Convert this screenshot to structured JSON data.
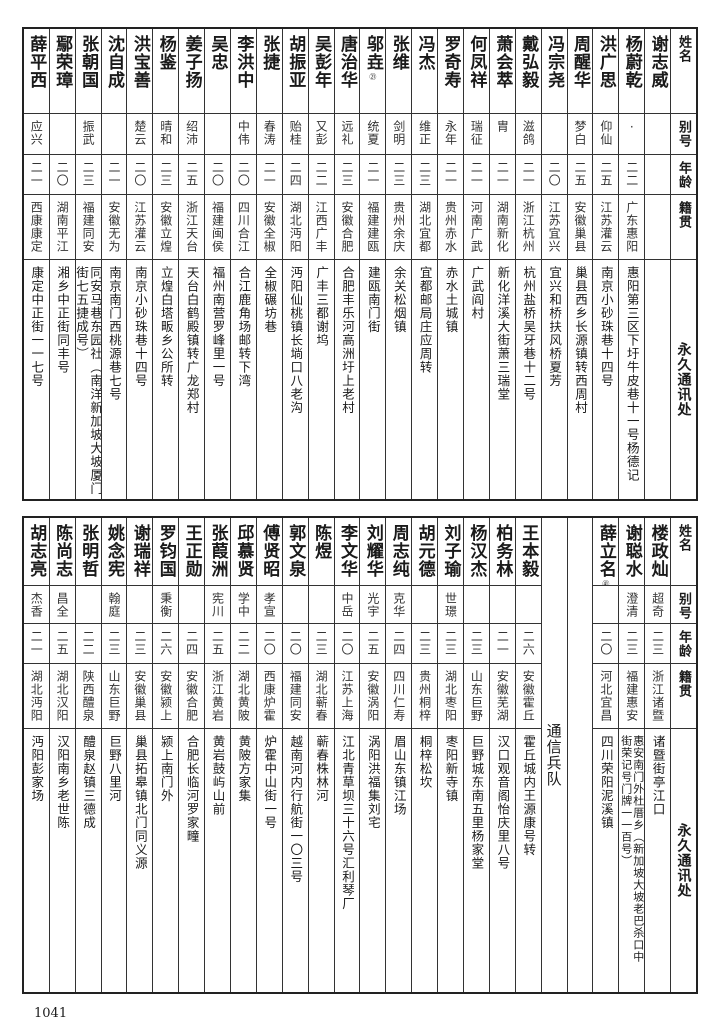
{
  "headers": {
    "name": "姓名",
    "alias": "别号",
    "age": "年龄",
    "origin": "籍贯",
    "address": "永久通讯处"
  },
  "table_top": [
    {
      "name": "谢志威",
      "alias": "",
      "age": "",
      "origin": "",
      "address": ""
    },
    {
      "name": "杨蔚乾",
      "alias": "·",
      "age": "二二",
      "origin": "广东惠阳",
      "address": "惠阳第三区下圩牛皮巷十一号杨德记"
    },
    {
      "name": "洪广思",
      "alias": "仰仙",
      "age": "二五",
      "origin": "江苏灌云",
      "address": "南京小砂珠巷十四号"
    },
    {
      "name": "周醒华",
      "alias": "梦白",
      "age": "二五",
      "origin": "安徽巢县",
      "address": "巢县西乡长源镇转西周村"
    },
    {
      "name": "冯宗尧",
      "alias": "",
      "age": "二〇",
      "origin": "江苏宜兴",
      "address": "宜兴和桥扶风桥夏芳"
    },
    {
      "name": "戴弘毅",
      "alias": "滋鸽",
      "age": "二一",
      "origin": "浙江杭州",
      "address": "杭州盐桥吴牙巷十二号"
    },
    {
      "name": "萧会萃",
      "alias": "胄",
      "age": "二一",
      "origin": "湖南新化",
      "address": "新化洋溪大街萧三瑞堂"
    },
    {
      "name": "何凤祥",
      "alias": "瑞征",
      "age": "二一",
      "origin": "河南广武",
      "address": "广武阎村"
    },
    {
      "name": "罗奇寿",
      "alias": "永年",
      "age": "二一",
      "origin": "贵州赤水",
      "address": "赤水土城镇"
    },
    {
      "name": "冯杰",
      "alias": "维正",
      "age": "二三",
      "origin": "湖北宜都",
      "address": "宜都邮局庄应周转"
    },
    {
      "name": "张维",
      "alias": "剑明",
      "age": "二三",
      "origin": "贵州余庆",
      "address": "余关松烟镇"
    },
    {
      "name": "邬垚",
      "note": "㉑",
      "alias": "统夏",
      "age": "二一",
      "origin": "福建建瓯",
      "address": "建瓯南门街"
    },
    {
      "name": "唐治华",
      "alias": "远礼",
      "age": "二三",
      "origin": "安徽合肥",
      "address": "合肥丰乐河高洲圩上老村"
    },
    {
      "name": "吴彭年",
      "alias": "又彭",
      "age": "二二",
      "origin": "江西广丰",
      "address": "广丰三都谢坞"
    },
    {
      "name": "胡振亚",
      "alias": "贻桂",
      "age": "二四",
      "origin": "湖北沔阳",
      "address": "沔阳仙桃镇长埫口八老沟"
    },
    {
      "name": "张捷",
      "alias": "春涛",
      "age": "二一",
      "origin": "安徽全椒",
      "address": "全椒碾坊巷"
    },
    {
      "name": "李洪中",
      "alias": "中伟",
      "age": "二〇",
      "origin": "四川合江",
      "address": "合江鹿角场邮转下湾"
    },
    {
      "name": "吴忠",
      "alias": "",
      "age": "二〇",
      "origin": "福建闽侯",
      "address": "福州南营罗峰里一号"
    },
    {
      "name": "姜子扬",
      "alias": "绍沛",
      "age": "二五",
      "origin": "浙江天台",
      "address": "天台白鹤殿镇转广龙郑村"
    },
    {
      "name": "杨鉴",
      "alias": "晴和",
      "age": "二三",
      "origin": "安徽立煌",
      "address": "立煌白塔畈乡公所转"
    },
    {
      "name": "洪宝善",
      "alias": "楚云",
      "age": "二〇",
      "origin": "江苏灌云",
      "address": "南京小砂珠巷十四号"
    },
    {
      "name": "沈自成",
      "alias": "",
      "age": "二一",
      "origin": "安徽无为",
      "address": "南京南门西桃源巷七号"
    },
    {
      "name": "张朝国",
      "alias": "振武",
      "age": "二三",
      "origin": "福建同安",
      "address": "同安马巷东园社（南洋新加坡大坡厦门街七五捷成号）"
    },
    {
      "name": "鄢荣璋",
      "alias": "",
      "age": "二〇",
      "origin": "湖南平江",
      "address": "湘乡中正街同丰号"
    },
    {
      "name": "薛平西",
      "alias": "应兴",
      "age": "二一",
      "origin": "西康康定",
      "address": "康定中正街一一七号"
    }
  ],
  "table_bottom": {
    "group1": [
      {
        "name": "楼政灿",
        "alias": "超奇",
        "age": "二三",
        "origin": "浙江诸暨",
        "address": "诸暨街亭江口"
      },
      {
        "name": "谢聪水",
        "alias": "澄清",
        "age": "二三",
        "origin": "福建惠安",
        "address": "惠安南门外杜厝乡（新加坡大坡老巴杀口中街荣记号门牌一一百号）"
      },
      {
        "name": "薛立名",
        "note": "㊶",
        "alias": "",
        "age": "二〇",
        "origin": "河北宜昌",
        "address": "四川荣阳泥溪镇"
      }
    ],
    "section_label": "通信兵队",
    "group2": [
      {
        "name": "王本毅",
        "alias": "",
        "age": "二六",
        "origin": "安徽霍丘",
        "address": "霍丘城内王源康号转"
      },
      {
        "name": "柏务林",
        "alias": "",
        "age": "二一",
        "origin": "安徽芜湖",
        "address": "汉口观音阁怡庆里八号"
      },
      {
        "name": "杨汉杰",
        "alias": "",
        "age": "二三",
        "origin": "山东巨野",
        "address": "巨野城东南五里杨家堂"
      },
      {
        "name": "刘子瑜",
        "alias": "世璟",
        "age": "二三",
        "origin": "湖北枣阳",
        "address": "枣阳新寺镇"
      },
      {
        "name": "胡元德",
        "alias": "",
        "age": "二三",
        "origin": "贵州桐梓",
        "address": "桐梓松坎"
      },
      {
        "name": "周志纯",
        "alias": "克华",
        "age": "二四",
        "origin": "四川仁寿",
        "address": "眉山东镇江场"
      },
      {
        "name": "刘耀华",
        "alias": "光宇",
        "age": "二五",
        "origin": "安徽涡阳",
        "address": "涡阳洪福集刘宅"
      },
      {
        "name": "李文华",
        "alias": "中岳",
        "age": "二〇",
        "origin": "江苏上海",
        "address": "江北青草坝三十六号汇利琴厂"
      },
      {
        "name": "陈煜",
        "alias": "",
        "age": "二三",
        "origin": "湖北蕲春",
        "address": "蕲春株林河"
      },
      {
        "name": "郭文泉",
        "alias": "",
        "age": "二〇",
        "origin": "福建同安",
        "address": "越南河内行航街一〇三号"
      },
      {
        "name": "傅贤昭",
        "alias": "孝宣",
        "age": "二〇",
        "origin": "西康炉霍",
        "address": "炉霍中山街一号"
      },
      {
        "name": "邱慕贤",
        "alias": "学中",
        "age": "二二",
        "origin": "湖北黄陂",
        "address": "黄陂方家集"
      },
      {
        "name": "张葭洲",
        "alias": "宪川",
        "age": "二五",
        "origin": "浙江黄岩",
        "address": "黄岩鼓屿山前"
      },
      {
        "name": "王正勋",
        "alias": "",
        "age": "二四",
        "origin": "安徽合肥",
        "address": "合肥长临河罗家疃"
      },
      {
        "name": "罗钧国",
        "alias": "秉衡",
        "age": "二六",
        "origin": "安徽颍上",
        "address": "颍上南门外"
      },
      {
        "name": "谢瑞祥",
        "alias": "",
        "age": "二三",
        "origin": "安徽巢县",
        "address": "巢县拓皋镇北门同义源"
      },
      {
        "name": "姚念宪",
        "alias": "翰庭",
        "age": "二三",
        "origin": "山东巨野",
        "address": "巨野八里河"
      },
      {
        "name": "张明哲",
        "alias": "",
        "age": "二二",
        "origin": "陕西醴泉",
        "address": "醴泉赵镇三德成"
      },
      {
        "name": "陈尚志",
        "alias": "昌全",
        "age": "二五",
        "origin": "湖北汉阳",
        "address": "汉阳南乡老世陈"
      },
      {
        "name": "胡志亮",
        "alias": "杰香",
        "age": "二一",
        "origin": "湖北沔阳",
        "address": "沔阳彭家场"
      }
    ]
  },
  "page_number": "1041"
}
